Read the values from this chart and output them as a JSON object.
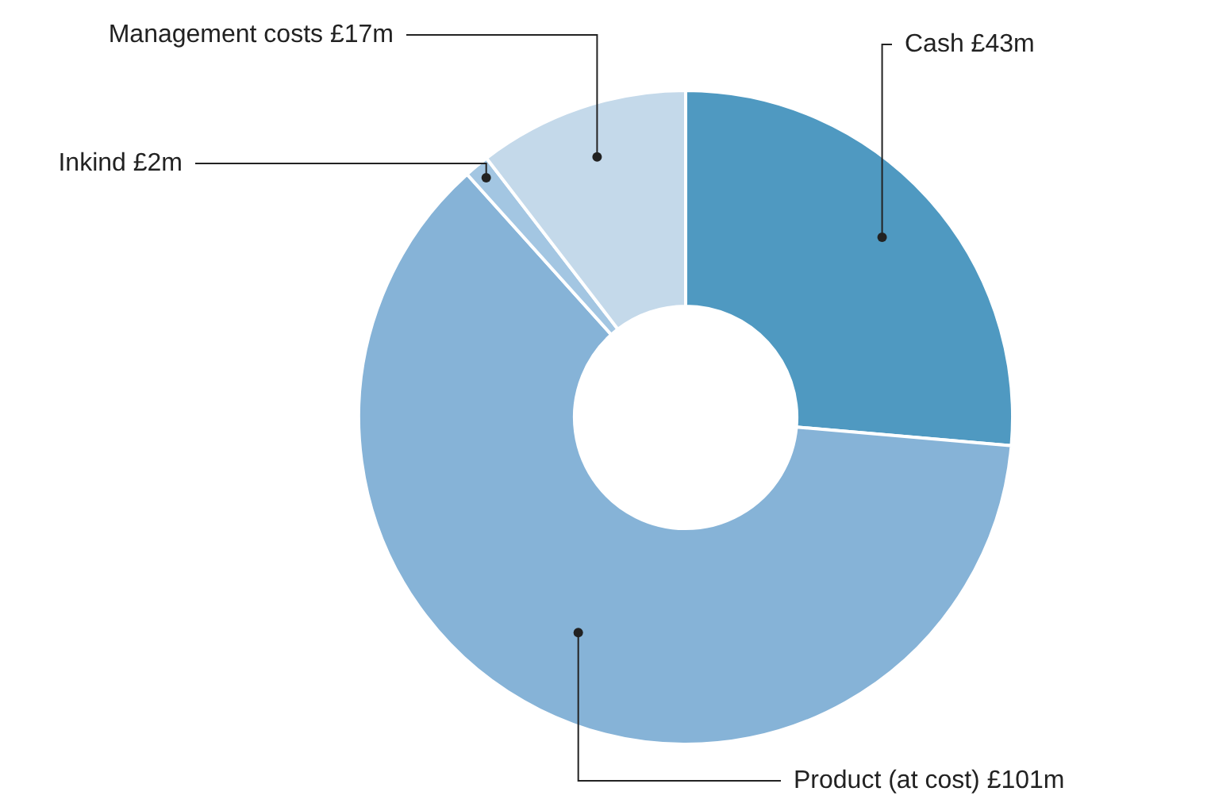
{
  "chart_data": {
    "type": "donut",
    "categories": [
      "Cash",
      "Product (at cost)",
      "Inkind",
      "Management costs"
    ],
    "values": [
      43,
      101,
      2,
      17
    ],
    "value_labels": [
      "£43m",
      "£101m",
      "£2m",
      "£17m"
    ],
    "colors": [
      "#4f99c1",
      "#86b3d7",
      "#a3c6e2",
      "#c4d9ea"
    ],
    "legend": false
  }
}
